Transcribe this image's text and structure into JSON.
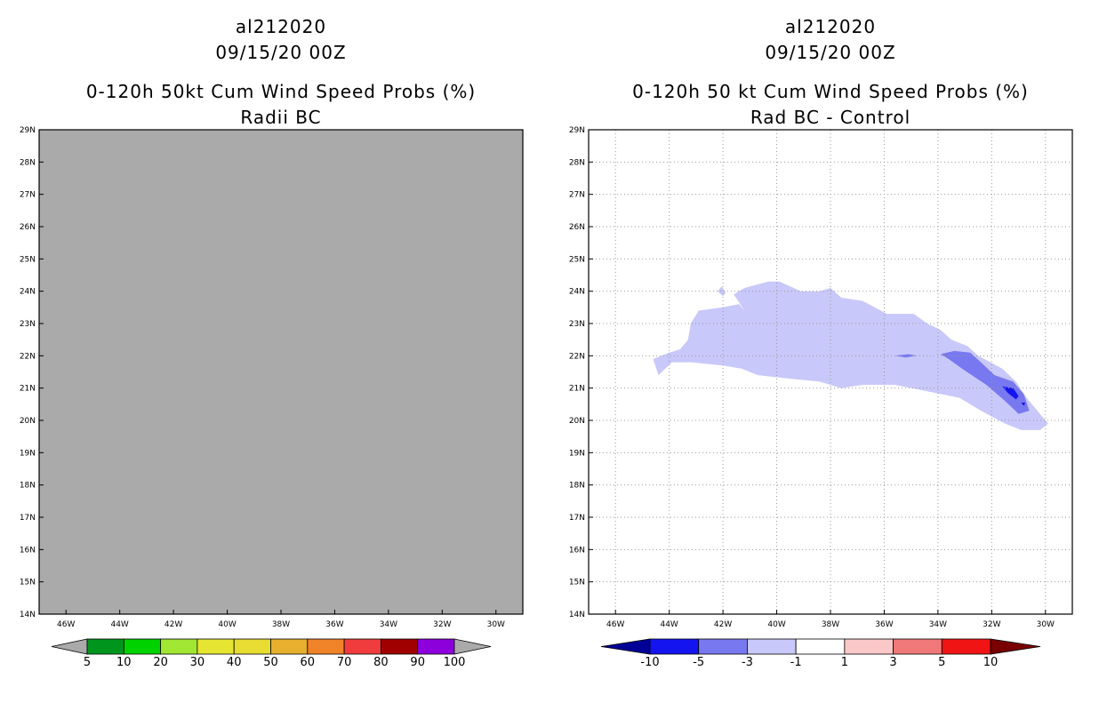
{
  "chart_data": [
    {
      "type": "heatmap",
      "storm_id": "al212020",
      "date": "09/15/20 00Z",
      "title": "0-120h 50kt Cum Wind Speed Probs (%)",
      "subtitle": "Radii BC",
      "xlim": [
        -47,
        -29
      ],
      "ylim": [
        14,
        29
      ],
      "x_ticks": [
        "46W",
        "44W",
        "42W",
        "40W",
        "38W",
        "36W",
        "34W",
        "32W",
        "30W"
      ],
      "y_ticks": [
        "14N",
        "15N",
        "16N",
        "17N",
        "18N",
        "19N",
        "20N",
        "21N",
        "22N",
        "23N",
        "24N",
        "25N",
        "26N",
        "27N",
        "28N",
        "29N"
      ],
      "grid": false,
      "field": "missing (uniform gray)",
      "colorbar": {
        "labels": [
          "5",
          "10",
          "20",
          "30",
          "40",
          "50",
          "60",
          "70",
          "80",
          "90",
          "100"
        ],
        "colors": [
          "#aaaaaa",
          "#00961e",
          "#00d200",
          "#a0e632",
          "#e6e632",
          "#e6dc32",
          "#e6af2d",
          "#f08228",
          "#f03c3c",
          "#a00000",
          "#8c00dc",
          "#aaaaaa"
        ]
      }
    },
    {
      "type": "heatmap",
      "storm_id": "al212020",
      "date": "09/15/20 00Z",
      "title": "0-120h 50 kt Cum Wind Speed Probs (%)",
      "subtitle": "Rad BC - Control",
      "xlim": [
        -47,
        -29
      ],
      "ylim": [
        14,
        29
      ],
      "x_ticks": [
        "46W",
        "44W",
        "42W",
        "40W",
        "38W",
        "36W",
        "34W",
        "32W",
        "30W"
      ],
      "y_ticks": [
        "14N",
        "15N",
        "16N",
        "17N",
        "18N",
        "19N",
        "20N",
        "21N",
        "22N",
        "23N",
        "24N",
        "25N",
        "26N",
        "27N",
        "28N",
        "29N"
      ],
      "grid": true,
      "regions": [
        {
          "level": "-3 to -1",
          "color": "#c8c8fa",
          "lonlat": [
            [
              -44.6,
              21.9
            ],
            [
              -44.0,
              22.1
            ],
            [
              -43.6,
              22.2
            ],
            [
              -43.3,
              22.5
            ],
            [
              -43.2,
              23.0
            ],
            [
              -42.9,
              23.4
            ],
            [
              -42.0,
              23.5
            ],
            [
              -41.4,
              23.6
            ],
            [
              -41.2,
              23.4
            ],
            [
              -41.6,
              23.9
            ],
            [
              -41.2,
              24.1
            ],
            [
              -40.3,
              24.3
            ],
            [
              -39.9,
              24.3
            ],
            [
              -39.1,
              24.0
            ],
            [
              -38.4,
              24.0
            ],
            [
              -38.0,
              24.1
            ],
            [
              -37.6,
              23.8
            ],
            [
              -36.8,
              23.7
            ],
            [
              -35.9,
              23.3
            ],
            [
              -34.9,
              23.3
            ],
            [
              -34.4,
              23.0
            ],
            [
              -33.9,
              22.8
            ],
            [
              -33.5,
              22.5
            ],
            [
              -32.9,
              22.3
            ],
            [
              -32.5,
              22.0
            ],
            [
              -31.6,
              21.6
            ],
            [
              -31.1,
              21.2
            ],
            [
              -30.7,
              20.7
            ],
            [
              -30.2,
              20.2
            ],
            [
              -29.9,
              19.9
            ],
            [
              -30.2,
              19.7
            ],
            [
              -30.9,
              19.7
            ],
            [
              -31.5,
              19.9
            ],
            [
              -32.4,
              20.3
            ],
            [
              -33.2,
              20.7
            ],
            [
              -34.4,
              20.9
            ],
            [
              -35.6,
              21.1
            ],
            [
              -36.8,
              21.1
            ],
            [
              -37.6,
              21.0
            ],
            [
              -38.4,
              21.2
            ],
            [
              -39.6,
              21.3
            ],
            [
              -40.7,
              21.4
            ],
            [
              -41.3,
              21.6
            ],
            [
              -42.0,
              21.7
            ],
            [
              -43.2,
              21.8
            ],
            [
              -43.9,
              21.8
            ],
            [
              -44.4,
              21.4
            ]
          ]
        },
        {
          "level": "-3 to -1",
          "color": "#c8c8fa",
          "lonlat": [
            [
              -42.2,
              24.0
            ],
            [
              -42.0,
              23.85
            ],
            [
              -41.9,
              23.95
            ],
            [
              -42.05,
              24.15
            ]
          ]
        },
        {
          "level": "-5 to -3",
          "color": "#7878f0",
          "lonlat": [
            [
              -33.9,
              22.05
            ],
            [
              -33.4,
              22.15
            ],
            [
              -32.8,
              22.1
            ],
            [
              -32.4,
              21.8
            ],
            [
              -31.9,
              21.4
            ],
            [
              -31.2,
              21.2
            ],
            [
              -30.8,
              20.8
            ],
            [
              -30.6,
              20.3
            ],
            [
              -31.0,
              20.2
            ],
            [
              -31.5,
              20.6
            ],
            [
              -32.2,
              21.1
            ],
            [
              -33.1,
              21.6
            ],
            [
              -33.6,
              21.9
            ]
          ]
        },
        {
          "level": "-5 to -3",
          "color": "#7878f0",
          "lonlat": [
            [
              -35.6,
              22.0
            ],
            [
              -35.1,
              22.05
            ],
            [
              -34.8,
              22.0
            ],
            [
              -35.2,
              21.95
            ]
          ]
        },
        {
          "level": "-10 to -5",
          "color": "#1414f0",
          "lonlat": [
            [
              -31.6,
              21.05
            ],
            [
              -31.2,
              21.0
            ],
            [
              -31.0,
              20.75
            ],
            [
              -31.1,
              20.65
            ],
            [
              -31.4,
              20.85
            ]
          ]
        },
        {
          "level": "-10 to -5",
          "color": "#1414f0",
          "lonlat": [
            [
              -30.9,
              20.55
            ],
            [
              -30.75,
              20.55
            ],
            [
              -30.8,
              20.45
            ]
          ]
        }
      ],
      "colorbar": {
        "labels": [
          "-10",
          "-5",
          "-3",
          "-1",
          "1",
          "3",
          "5",
          "10"
        ],
        "colors": [
          "#000096",
          "#1414f0",
          "#7878f0",
          "#c8c8fa",
          "#ffffff",
          "#fac8c8",
          "#f07878",
          "#f01414",
          "#780000"
        ]
      }
    }
  ]
}
